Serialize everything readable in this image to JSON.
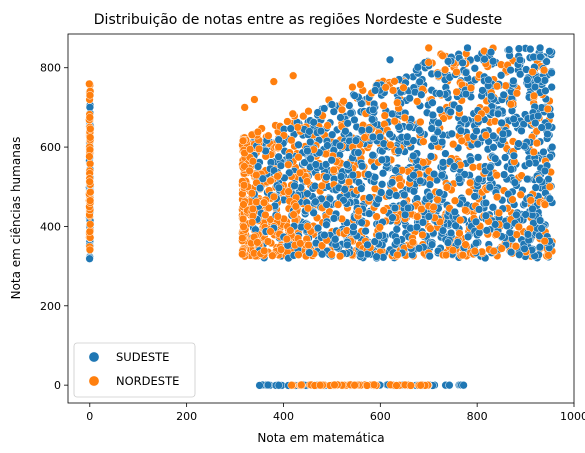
{
  "chart_data": {
    "type": "scatter",
    "title": "Distribuição de notas entre as regiões Nordeste e Sudeste",
    "xlabel": "Nota em matemática",
    "ylabel": "Nota em ciências humanas",
    "xlim": [
      -45,
      1000
    ],
    "ylim": [
      -45,
      885
    ],
    "xticks": [
      0,
      200,
      400,
      600,
      800,
      1000
    ],
    "yticks": [
      0,
      200,
      400,
      600,
      800
    ],
    "xtick_labels": [
      "0",
      "200",
      "400",
      "600",
      "800",
      "1000"
    ],
    "ytick_labels": [
      "0",
      "200",
      "400",
      "600",
      "800"
    ],
    "legend_position": "lower-left",
    "grid": false,
    "series": [
      {
        "name": "SUDESTE",
        "color": "#1f77b4",
        "clusters": {
          "zero_math": {
            "x": 0,
            "y_range": [
              315,
              740
            ]
          },
          "zero_humanas": {
            "y": 0,
            "x_range": [
              345,
              775
            ]
          },
          "main": {
            "x_range": [
              320,
              955
            ],
            "y_range": [
              320,
              850
            ]
          }
        },
        "sample_points": [
          [
            870,
            335
          ],
          [
            905,
            380
          ],
          [
            930,
            415
          ],
          [
            950,
            470
          ],
          [
            940,
            540
          ],
          [
            955,
            600
          ],
          [
            900,
            430
          ],
          [
            760,
            360
          ],
          [
            820,
            390
          ],
          [
            680,
            345
          ],
          [
            560,
            330
          ],
          [
            480,
            330
          ],
          [
            930,
            850
          ],
          [
            780,
            850
          ],
          [
            620,
            820
          ]
        ]
      },
      {
        "name": "NORDESTE",
        "color": "#ff7f0e",
        "clusters": {
          "zero_math": {
            "x": 0,
            "y_range": [
              330,
              770
            ]
          },
          "zero_humanas": {
            "y": 0,
            "x_range": [
              415,
              710
            ]
          },
          "main": {
            "x_range": [
              315,
              955
            ],
            "y_range": [
              325,
              850
            ]
          }
        },
        "sample_points": [
          [
            320,
            700
          ],
          [
            340,
            720
          ],
          [
            380,
            765
          ],
          [
            420,
            780
          ],
          [
            700,
            850
          ],
          [
            940,
            455
          ],
          [
            950,
            500
          ],
          [
            890,
            480
          ],
          [
            330,
            540
          ],
          [
            315,
            330
          ],
          [
            880,
            350
          ],
          [
            840,
            380
          ],
          [
            360,
            460
          ],
          [
            450,
            400
          ],
          [
            750,
            340
          ]
        ]
      }
    ]
  }
}
